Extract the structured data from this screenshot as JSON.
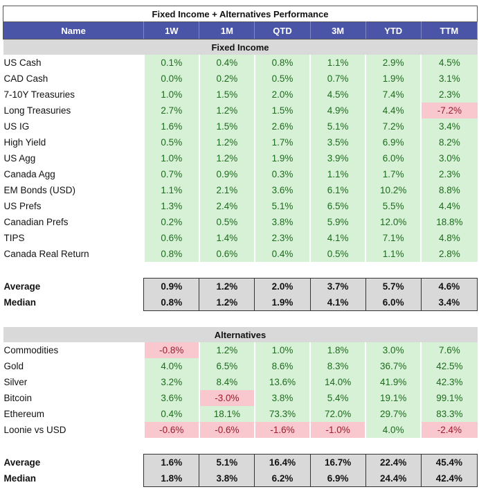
{
  "title": "Fixed Income + Alternatives Performance",
  "columns": [
    "Name",
    "1W",
    "1M",
    "QTD",
    "3M",
    "YTD",
    "TTM"
  ],
  "colors": {
    "header_bg": "#4a55a8",
    "positive_bg": "#d6f1d6",
    "positive_text": "#1c6b1c",
    "negative_bg": "#f8c8ce",
    "negative_text": "#9b1c2b",
    "section_bg": "#d9d9d9"
  },
  "sections": [
    {
      "title": "Fixed Income",
      "rows": [
        {
          "name": "US Cash",
          "values": [
            "0.1%",
            "0.4%",
            "0.8%",
            "1.1%",
            "2.9%",
            "4.5%"
          ]
        },
        {
          "name": "CAD Cash",
          "values": [
            "0.0%",
            "0.2%",
            "0.5%",
            "0.7%",
            "1.9%",
            "3.1%"
          ]
        },
        {
          "name": "7-10Y Treasuries",
          "values": [
            "1.0%",
            "1.5%",
            "2.0%",
            "4.5%",
            "7.4%",
            "2.3%"
          ]
        },
        {
          "name": "Long Treasuries",
          "values": [
            "2.7%",
            "1.2%",
            "1.5%",
            "4.9%",
            "4.4%",
            "-7.2%"
          ]
        },
        {
          "name": "US IG",
          "values": [
            "1.6%",
            "1.5%",
            "2.6%",
            "5.1%",
            "7.2%",
            "3.4%"
          ]
        },
        {
          "name": "High Yield",
          "values": [
            "0.5%",
            "1.2%",
            "1.7%",
            "3.5%",
            "6.9%",
            "8.2%"
          ]
        },
        {
          "name": "US Agg",
          "values": [
            "1.0%",
            "1.2%",
            "1.9%",
            "3.9%",
            "6.0%",
            "3.0%"
          ]
        },
        {
          "name": "Canada Agg",
          "values": [
            "0.7%",
            "0.9%",
            "0.3%",
            "1.1%",
            "1.7%",
            "2.3%"
          ]
        },
        {
          "name": "EM Bonds (USD)",
          "values": [
            "1.1%",
            "2.1%",
            "3.6%",
            "6.1%",
            "10.2%",
            "8.8%"
          ]
        },
        {
          "name": "US Prefs",
          "values": [
            "1.3%",
            "2.4%",
            "5.1%",
            "6.5%",
            "5.5%",
            "4.4%"
          ]
        },
        {
          "name": "Canadian Prefs",
          "values": [
            "0.2%",
            "0.5%",
            "3.8%",
            "5.9%",
            "12.0%",
            "18.8%"
          ]
        },
        {
          "name": "TIPS",
          "values": [
            "0.6%",
            "1.4%",
            "2.3%",
            "4.1%",
            "7.1%",
            "4.8%"
          ]
        },
        {
          "name": "Canada Real Return",
          "values": [
            "0.8%",
            "0.6%",
            "0.4%",
            "0.5%",
            "1.1%",
            "2.8%"
          ]
        }
      ],
      "summary": [
        {
          "name": "Average",
          "values": [
            "0.9%",
            "1.2%",
            "2.0%",
            "3.7%",
            "5.7%",
            "4.6%"
          ]
        },
        {
          "name": "Median",
          "values": [
            "0.8%",
            "1.2%",
            "1.9%",
            "4.1%",
            "6.0%",
            "3.4%"
          ]
        }
      ]
    },
    {
      "title": "Alternatives",
      "rows": [
        {
          "name": "Commodities",
          "values": [
            "-0.8%",
            "1.2%",
            "1.0%",
            "1.8%",
            "3.0%",
            "7.6%"
          ]
        },
        {
          "name": "Gold",
          "values": [
            "4.0%",
            "6.5%",
            "8.6%",
            "8.3%",
            "36.7%",
            "42.5%"
          ]
        },
        {
          "name": "Silver",
          "values": [
            "3.2%",
            "8.4%",
            "13.6%",
            "14.0%",
            "41.9%",
            "42.3%"
          ]
        },
        {
          "name": "Bitcoin",
          "values": [
            "3.6%",
            "-3.0%",
            "3.8%",
            "5.4%",
            "19.1%",
            "99.1%"
          ]
        },
        {
          "name": "Ethereum",
          "values": [
            "0.4%",
            "18.1%",
            "73.3%",
            "72.0%",
            "29.7%",
            "83.3%"
          ]
        },
        {
          "name": "Loonie vs USD",
          "values": [
            "-0.6%",
            "-0.6%",
            "-1.6%",
            "-1.0%",
            "4.0%",
            "-2.4%"
          ]
        }
      ],
      "summary": [
        {
          "name": "Average",
          "values": [
            "1.6%",
            "5.1%",
            "16.4%",
            "16.7%",
            "22.4%",
            "45.4%"
          ]
        },
        {
          "name": "Median",
          "values": [
            "1.8%",
            "3.8%",
            "6.2%",
            "6.9%",
            "24.4%",
            "42.4%"
          ]
        }
      ]
    }
  ]
}
